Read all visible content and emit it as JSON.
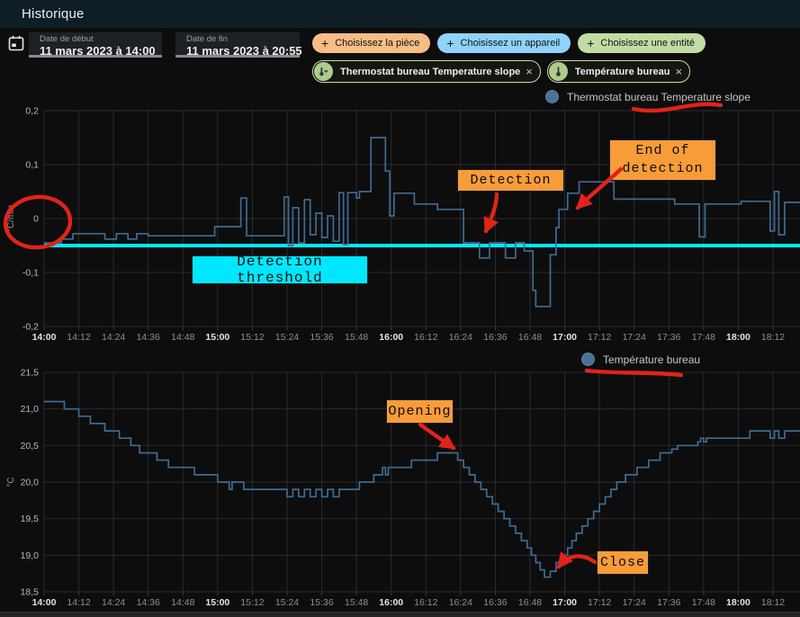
{
  "header": {
    "title": "Historique"
  },
  "toolbar": {
    "start_date": {
      "label": "Date de début",
      "value": "11 mars 2023 à 14:00"
    },
    "end_date": {
      "label": "Date de fin",
      "value": "11 mars 2023 à 20:55"
    },
    "buttons": [
      {
        "label": "Choisissez la pièce",
        "plus": "+",
        "color": "#f7bd85"
      },
      {
        "label": "Choisissez un appareil",
        "plus": "+",
        "color": "#90d3f8"
      },
      {
        "label": "Choisissez une entité",
        "plus": "+",
        "color": "#c2dda4"
      }
    ],
    "chips": [
      {
        "label": "Thermostat bureau Temperature slope",
        "close": "×"
      },
      {
        "label": "Température bureau",
        "close": "×"
      }
    ]
  },
  "annotations": {
    "detection": {
      "label": "Detection"
    },
    "end_of_detection": {
      "line1": "End of",
      "line2": "detection"
    },
    "detection_threshold": {
      "label": "Detection threshold"
    },
    "opening": {
      "label": "Opening"
    },
    "close": {
      "label": "Close"
    }
  },
  "theme": {
    "header_bg": "#0f1d26",
    "background": "#0d0d0d",
    "series_line": "#3e6b94",
    "threshold_cyan": "#00e8ff",
    "annotation_orange": "#f89c3a",
    "annotation_red": "#e2231a",
    "grid": "#2a2a2a"
  },
  "chart_data": [
    {
      "type": "line",
      "title": "Thermostat bureau Temperature slope",
      "ylabel": "°C/min",
      "ylim": [
        -0.2,
        0.2
      ],
      "y_ticks": [
        "0,2",
        "0,1",
        "0",
        "-0,1",
        "-0,2"
      ],
      "x_ticks": [
        "14:00",
        "14:12",
        "14:24",
        "14:36",
        "14:48",
        "15:00",
        "15:12",
        "15:24",
        "15:36",
        "15:48",
        "16:00",
        "16:12",
        "16:24",
        "16:36",
        "16:48",
        "17:00",
        "17:12",
        "17:24",
        "17:36",
        "17:48",
        "18:00",
        "18:12"
      ],
      "threshold": -0.05,
      "legend_position": "top-center",
      "grid": true,
      "step": true,
      "points_minutes_value": [
        [
          0,
          -0.045
        ],
        [
          6,
          -0.038
        ],
        [
          10,
          -0.028
        ],
        [
          21,
          -0.038
        ],
        [
          25,
          -0.028
        ],
        [
          29,
          -0.038
        ],
        [
          32,
          -0.028
        ],
        [
          36,
          -0.032
        ],
        [
          59,
          -0.015
        ],
        [
          68,
          0.038
        ],
        [
          70,
          -0.032
        ],
        [
          83,
          0.04
        ],
        [
          84.5,
          -0.05
        ],
        [
          86,
          0.02
        ],
        [
          88,
          -0.045
        ],
        [
          90,
          0.035
        ],
        [
          92,
          -0.03
        ],
        [
          94,
          0.01
        ],
        [
          96,
          -0.035
        ],
        [
          98,
          0.005
        ],
        [
          100,
          -0.042
        ],
        [
          102,
          0.048
        ],
        [
          103.5,
          -0.048
        ],
        [
          105,
          0.048
        ],
        [
          108,
          0.038
        ],
        [
          109,
          0.05
        ],
        [
          113,
          0.15
        ],
        [
          118,
          0.088
        ],
        [
          119.5,
          0.005
        ],
        [
          121,
          0.047
        ],
        [
          128,
          0.027
        ],
        [
          136,
          0.017
        ],
        [
          145,
          -0.045
        ],
        [
          150.5,
          -0.073
        ],
        [
          154,
          -0.045
        ],
        [
          159.5,
          -0.073
        ],
        [
          163,
          -0.045
        ],
        [
          166,
          -0.06
        ],
        [
          169,
          -0.133
        ],
        [
          170,
          -0.163
        ],
        [
          175,
          -0.067
        ],
        [
          177,
          -0.017
        ],
        [
          178,
          0.017
        ],
        [
          181,
          0.047
        ],
        [
          185,
          0.068
        ],
        [
          197,
          0.036
        ],
        [
          218,
          0.027
        ],
        [
          226.5,
          -0.034
        ],
        [
          228.5,
          0.027
        ],
        [
          241,
          0.032
        ],
        [
          251,
          -0.023
        ],
        [
          252.5,
          0.05
        ],
        [
          254,
          -0.03
        ],
        [
          256,
          0.03
        ],
        [
          261,
          0.03
        ]
      ]
    },
    {
      "type": "line",
      "title": "Température bureau",
      "ylabel": "°C",
      "ylim": [
        18.5,
        21.5
      ],
      "y_ticks": [
        "21,5",
        "21,0",
        "20,5",
        "20,0",
        "19,5",
        "19,0",
        "18,5"
      ],
      "x_ticks": [
        "14:00",
        "14:12",
        "14:24",
        "14:36",
        "14:48",
        "15:00",
        "15:12",
        "15:24",
        "15:36",
        "15:48",
        "16:00",
        "16:12",
        "16:24",
        "16:36",
        "16:48",
        "17:00",
        "17:12",
        "17:24",
        "17:36",
        "17:48",
        "18:00",
        "18:12"
      ],
      "legend_position": "top-center",
      "grid": true,
      "step": true,
      "points_minutes_value": [
        [
          0,
          21.1
        ],
        [
          7,
          21.0
        ],
        [
          12,
          20.9
        ],
        [
          16,
          20.8
        ],
        [
          21,
          20.7
        ],
        [
          26,
          20.6
        ],
        [
          30,
          20.5
        ],
        [
          33,
          20.4
        ],
        [
          39,
          20.3
        ],
        [
          43,
          20.2
        ],
        [
          52,
          20.1
        ],
        [
          60,
          20.0
        ],
        [
          64,
          19.9
        ],
        [
          65,
          20.0
        ],
        [
          69,
          19.9
        ],
        [
          84,
          19.8
        ],
        [
          86,
          19.9
        ],
        [
          88,
          19.8
        ],
        [
          90,
          19.9
        ],
        [
          92,
          19.8
        ],
        [
          94,
          19.9
        ],
        [
          96,
          19.8
        ],
        [
          98,
          19.9
        ],
        [
          100,
          19.8
        ],
        [
          102,
          19.9
        ],
        [
          109,
          20.0
        ],
        [
          114,
          20.1
        ],
        [
          117,
          20.2
        ],
        [
          118,
          20.1
        ],
        [
          119,
          20.2
        ],
        [
          127,
          20.3
        ],
        [
          136,
          20.4
        ],
        [
          143,
          20.3
        ],
        [
          145,
          20.2
        ],
        [
          147,
          20.1
        ],
        [
          149,
          20.0
        ],
        [
          151,
          19.9
        ],
        [
          153,
          19.8
        ],
        [
          155,
          19.7
        ],
        [
          157,
          19.6
        ],
        [
          159,
          19.5
        ],
        [
          161,
          19.4
        ],
        [
          163,
          19.3
        ],
        [
          165,
          19.2
        ],
        [
          167,
          19.1
        ],
        [
          168.5,
          19.0
        ],
        [
          170,
          18.9
        ],
        [
          171.5,
          18.8
        ],
        [
          173,
          18.7
        ],
        [
          175,
          18.78
        ],
        [
          177,
          18.9
        ],
        [
          179,
          19.0
        ],
        [
          181,
          19.1
        ],
        [
          182.5,
          19.2
        ],
        [
          184,
          19.3
        ],
        [
          186,
          19.4
        ],
        [
          188,
          19.5
        ],
        [
          190,
          19.6
        ],
        [
          192,
          19.7
        ],
        [
          194,
          19.8
        ],
        [
          196,
          19.9
        ],
        [
          198,
          20.0
        ],
        [
          201,
          20.1
        ],
        [
          205,
          20.2
        ],
        [
          209,
          20.3
        ],
        [
          213,
          20.4
        ],
        [
          217,
          20.45
        ],
        [
          219,
          20.5
        ],
        [
          226,
          20.55
        ],
        [
          227,
          20.6
        ],
        [
          228,
          20.55
        ],
        [
          229,
          20.6
        ],
        [
          244,
          20.7
        ],
        [
          251,
          20.6
        ],
        [
          252.5,
          20.7
        ],
        [
          254,
          20.6
        ],
        [
          256,
          20.7
        ],
        [
          261,
          20.7
        ]
      ]
    }
  ]
}
